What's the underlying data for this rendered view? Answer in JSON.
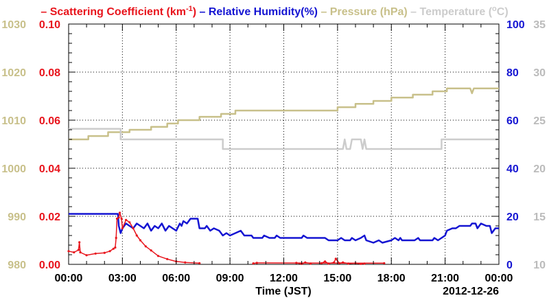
{
  "chart_data": {
    "type": "line",
    "legend": [
      {
        "label": "– Scattering Coefficient (km",
        "sup": "-1",
        "tail": ")",
        "color": "#e8141c"
      },
      {
        "label": "– Relative Humidity(%)",
        "color": "#1414d2"
      },
      {
        "label": "– Pressure (hPa)",
        "color": "#c8c08a"
      },
      {
        "label": "– Temperature (",
        "sup": "o",
        "tail": "C)",
        "color": "#cccccc"
      }
    ],
    "xlabel": "Time (JST)",
    "date": "2012-12-26",
    "xlim": [
      0,
      24
    ],
    "xticks": [
      {
        "v": 0,
        "label": "00:00"
      },
      {
        "v": 3,
        "label": "03:00"
      },
      {
        "v": 6,
        "label": "06:00"
      },
      {
        "v": 9,
        "label": "09:00"
      },
      {
        "v": 12,
        "label": "12:00"
      },
      {
        "v": 15,
        "label": "15:00"
      },
      {
        "v": 18,
        "label": "18:00"
      },
      {
        "v": 21,
        "label": "21:00"
      },
      {
        "v": 24,
        "label": "00:00"
      }
    ],
    "grid": true,
    "axes": {
      "pressure": {
        "range": [
          980,
          1030
        ],
        "ticks": [
          "980",
          "990",
          "1000",
          "1010",
          "1020",
          "1030"
        ],
        "color": "#c8c08a"
      },
      "scattering": {
        "range": [
          0,
          0.1
        ],
        "ticks": [
          "0.00",
          "0.02",
          "0.04",
          "0.06",
          "0.08",
          "0.10"
        ],
        "color": "#e8141c"
      },
      "humidity": {
        "range": [
          0,
          100
        ],
        "ticks": [
          "0",
          "20",
          "40",
          "60",
          "80",
          "100"
        ],
        "color": "#1414d2"
      },
      "temperature": {
        "range": [
          10,
          35
        ],
        "ticks": [
          "10",
          "15",
          "20",
          "25",
          "30",
          "35"
        ],
        "color": "#bbbbbb"
      }
    },
    "series": [
      {
        "axis": "pressure",
        "color": "#c8c08a",
        "points": [
          [
            0,
            1006
          ],
          [
            1.1,
            1006
          ],
          [
            1.1,
            1006.7
          ],
          [
            2.2,
            1006.7
          ],
          [
            2.2,
            1007.5
          ],
          [
            3.4,
            1007.5
          ],
          [
            3.4,
            1008.0
          ],
          [
            4.6,
            1008.0
          ],
          [
            4.6,
            1008.6
          ],
          [
            5.5,
            1008.6
          ],
          [
            5.5,
            1009.3
          ],
          [
            6.1,
            1009.3
          ],
          [
            6.1,
            1010.0
          ],
          [
            7.3,
            1010.0
          ],
          [
            7.3,
            1010.7
          ],
          [
            8.5,
            1010.7
          ],
          [
            8.5,
            1011.3
          ],
          [
            9.3,
            1011.3
          ],
          [
            9.3,
            1012.0
          ],
          [
            15.0,
            1012.0
          ],
          [
            15.0,
            1012.7
          ],
          [
            16.0,
            1012.7
          ],
          [
            16.0,
            1013.4
          ],
          [
            17.0,
            1013.4
          ],
          [
            17.0,
            1014.0
          ],
          [
            18.0,
            1014.0
          ],
          [
            18.0,
            1014.7
          ],
          [
            19.2,
            1014.7
          ],
          [
            19.2,
            1015.3
          ],
          [
            20.3,
            1015.3
          ],
          [
            20.3,
            1016.0
          ],
          [
            21.1,
            1016.0
          ],
          [
            21.1,
            1016.6
          ],
          [
            22.4,
            1016.6
          ],
          [
            22.5,
            1015.6
          ],
          [
            22.6,
            1016.6
          ],
          [
            24,
            1016.6
          ]
        ]
      },
      {
        "axis": "temperature",
        "color": "#cccccc",
        "points": [
          [
            0,
            24.1
          ],
          [
            2.9,
            24.1
          ],
          [
            2.9,
            23.0
          ],
          [
            8.6,
            23.0
          ],
          [
            8.6,
            22.0
          ],
          [
            15.3,
            22.0
          ],
          [
            15.4,
            23.0
          ],
          [
            15.5,
            22.0
          ],
          [
            15.7,
            22.0
          ],
          [
            15.8,
            23.0
          ],
          [
            16.3,
            23.0
          ],
          [
            16.4,
            22.0
          ],
          [
            16.5,
            23.0
          ],
          [
            16.6,
            22.0
          ],
          [
            20.8,
            22.0
          ],
          [
            20.8,
            23.0
          ],
          [
            24,
            23.0
          ]
        ]
      },
      {
        "axis": "humidity",
        "color": "#1414d2",
        "points": [
          [
            0,
            21
          ],
          [
            2.75,
            21
          ],
          [
            2.8,
            16
          ],
          [
            2.9,
            13
          ],
          [
            3.0,
            15
          ],
          [
            3.2,
            17
          ],
          [
            3.4,
            16
          ],
          [
            3.6,
            15
          ],
          [
            3.8,
            17
          ],
          [
            4.0,
            16
          ],
          [
            4.2,
            15
          ],
          [
            4.4,
            17
          ],
          [
            4.6,
            14
          ],
          [
            4.8,
            16
          ],
          [
            5.0,
            15
          ],
          [
            5.2,
            17
          ],
          [
            5.4,
            14
          ],
          [
            5.6,
            16
          ],
          [
            5.8,
            15
          ],
          [
            6.0,
            14
          ],
          [
            6.2,
            17
          ],
          [
            6.3,
            16
          ],
          [
            6.4,
            18
          ],
          [
            6.6,
            17
          ],
          [
            6.8,
            19
          ],
          [
            7.2,
            19
          ],
          [
            7.3,
            15
          ],
          [
            7.6,
            15
          ],
          [
            7.7,
            16
          ],
          [
            7.9,
            14
          ],
          [
            8.1,
            15
          ],
          [
            8.4,
            14
          ],
          [
            8.6,
            12
          ],
          [
            8.8,
            13
          ],
          [
            9.0,
            12
          ],
          [
            9.3,
            13
          ],
          [
            9.6,
            14
          ],
          [
            9.8,
            12
          ],
          [
            10.2,
            12
          ],
          [
            10.3,
            11
          ],
          [
            10.8,
            11
          ],
          [
            10.9,
            12
          ],
          [
            11.2,
            11
          ],
          [
            11.5,
            11
          ],
          [
            11.6,
            12
          ],
          [
            11.8,
            11
          ],
          [
            12.5,
            11
          ],
          [
            13.0,
            11
          ],
          [
            13.1,
            12
          ],
          [
            13.3,
            11
          ],
          [
            14.0,
            11
          ],
          [
            14.3,
            11
          ],
          [
            14.5,
            10
          ],
          [
            15.0,
            10
          ],
          [
            15.2,
            11
          ],
          [
            15.4,
            10
          ],
          [
            15.7,
            10
          ],
          [
            15.8,
            11
          ],
          [
            16.0,
            10
          ],
          [
            16.3,
            11
          ],
          [
            16.5,
            12
          ],
          [
            16.6,
            10
          ],
          [
            17.0,
            9
          ],
          [
            17.3,
            10
          ],
          [
            17.5,
            9
          ],
          [
            18.0,
            10
          ],
          [
            18.2,
            11
          ],
          [
            18.4,
            10
          ],
          [
            18.5,
            11
          ],
          [
            18.6,
            10
          ],
          [
            19.0,
            10
          ],
          [
            19.3,
            10
          ],
          [
            19.5,
            11
          ],
          [
            19.6,
            10
          ],
          [
            20.3,
            10
          ],
          [
            20.4,
            11
          ],
          [
            20.6,
            10
          ],
          [
            20.8,
            11
          ],
          [
            21.0,
            12
          ],
          [
            21.1,
            14
          ],
          [
            21.4,
            15
          ],
          [
            21.6,
            15
          ],
          [
            21.8,
            16
          ],
          [
            22.4,
            16
          ],
          [
            22.5,
            17
          ],
          [
            22.7,
            17
          ],
          [
            22.8,
            15
          ],
          [
            23.0,
            17
          ],
          [
            23.3,
            16
          ],
          [
            23.5,
            16
          ],
          [
            23.6,
            13
          ],
          [
            23.8,
            15
          ],
          [
            24.0,
            15
          ]
        ]
      },
      {
        "axis": "scattering",
        "color": "#e8141c",
        "markers": true,
        "points": [
          [
            0,
            0.0055
          ],
          [
            0.3,
            0.005
          ],
          [
            0.55,
            0.006
          ],
          [
            0.6,
            0.0092
          ],
          [
            0.65,
            0.005
          ],
          [
            1.0,
            0.0038
          ],
          [
            1.5,
            0.0045
          ],
          [
            2.0,
            0.0048
          ],
          [
            2.3,
            0.0055
          ],
          [
            2.5,
            0.0065
          ],
          [
            2.6,
            0.007
          ],
          [
            2.65,
            0.011
          ],
          [
            2.7,
            0.019
          ],
          [
            2.8,
            0.0195
          ],
          [
            2.85,
            0.0215
          ],
          [
            2.95,
            0.019
          ],
          [
            3.0,
            0.015
          ],
          [
            3.2,
            0.0185
          ],
          [
            3.4,
            0.0175
          ],
          [
            3.6,
            0.015
          ],
          [
            3.8,
            0.012
          ],
          [
            4.0,
            0.01
          ],
          [
            4.3,
            0.0075
          ],
          [
            4.6,
            0.0058
          ],
          [
            5.0,
            0.0035
          ],
          [
            5.5,
            0.0022
          ],
          [
            6.0,
            0.0012
          ],
          [
            6.5,
            0.0008
          ],
          [
            7.3,
            0.0005
          ]
        ]
      },
      {
        "axis": "scattering",
        "color": "#e8141c",
        "markers": true,
        "points": [
          [
            12.7,
            0.0006
          ],
          [
            13.0,
            0.0002
          ],
          [
            13.2,
            0.0008
          ],
          [
            13.5,
            0.0003
          ]
        ]
      },
      {
        "axis": "scattering",
        "color": "#e8141c",
        "markers": true,
        "points": [
          [
            14.1,
            0.0005
          ],
          [
            14.3,
            0.0012
          ],
          [
            14.5,
            0.0003
          ],
          [
            14.8,
            0.0008
          ],
          [
            14.9,
            0.0023
          ],
          [
            15.1,
            0.0005
          ],
          [
            15.3,
            0.0008
          ],
          [
            15.6,
            0.0003
          ],
          [
            16.0,
            0.0005
          ],
          [
            16.3,
            0.0002
          ],
          [
            16.5,
            0.0003
          ]
        ]
      },
      {
        "axis": "scattering",
        "color": "#e8141c",
        "markers": true,
        "points": [
          [
            10.3,
            0.0004
          ],
          [
            10.5,
            0.0006
          ],
          [
            17.6,
            0.0005
          ]
        ]
      }
    ]
  }
}
